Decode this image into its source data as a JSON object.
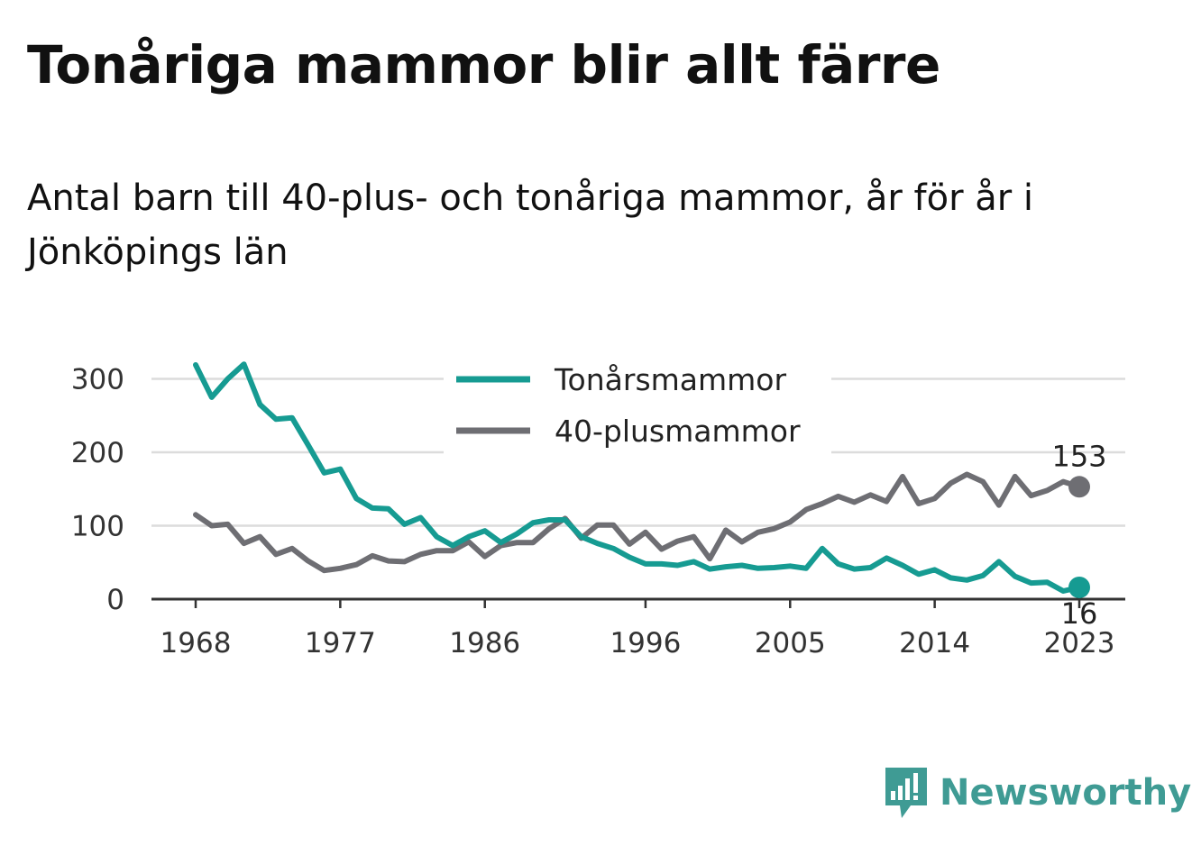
{
  "title": "Tonåriga mammor blir allt färre",
  "subtitle": "Antal barn till 40-plus- och tonåriga mammor, år för år i Jönköpings län",
  "brand": {
    "name": "Newsworthy",
    "icon": "newsworthy-logo-icon",
    "color": "#3f9b94"
  },
  "chart_data": {
    "type": "line",
    "title": "Tonåriga mammor blir allt färre",
    "subtitle": "Antal barn till 40-plus- och tonåriga mammor, år för år i Jönköpings län",
    "xlabel": "",
    "ylabel": "",
    "x": [
      1968,
      1969,
      1970,
      1971,
      1972,
      1973,
      1974,
      1975,
      1976,
      1977,
      1978,
      1979,
      1980,
      1981,
      1982,
      1983,
      1984,
      1985,
      1986,
      1987,
      1988,
      1989,
      1990,
      1991,
      1992,
      1993,
      1994,
      1995,
      1996,
      1997,
      1998,
      1999,
      2000,
      2001,
      2002,
      2003,
      2004,
      2005,
      2006,
      2007,
      2008,
      2009,
      2010,
      2011,
      2012,
      2013,
      2014,
      2015,
      2016,
      2017,
      2018,
      2019,
      2020,
      2021,
      2022,
      2023
    ],
    "x_ticks": [
      "1968",
      "1977",
      "1986",
      "1996",
      "2005",
      "2014",
      "2023"
    ],
    "y_ticks": [
      0,
      100,
      200,
      300
    ],
    "ylim": [
      0,
      340
    ],
    "grid": true,
    "legend": "top-center",
    "series": [
      {
        "name": "Tonårsmammor",
        "color": "#169b92",
        "values": [
          319,
          275,
          300,
          320,
          265,
          245,
          247,
          210,
          172,
          177,
          137,
          124,
          123,
          102,
          111,
          85,
          73,
          85,
          93,
          77,
          89,
          104,
          108,
          108,
          85,
          76,
          69,
          57,
          48,
          48,
          46,
          51,
          41,
          44,
          46,
          42,
          43,
          45,
          42,
          69,
          48,
          41,
          43,
          56,
          46,
          34,
          40,
          29,
          26,
          32,
          51,
          31,
          22,
          23,
          11,
          16
        ],
        "end_label": "16"
      },
      {
        "name": "40-plusmammor",
        "color": "#6e6e73",
        "values": [
          115,
          100,
          102,
          76,
          85,
          61,
          69,
          52,
          39,
          42,
          47,
          59,
          52,
          51,
          61,
          66,
          66,
          78,
          58,
          73,
          77,
          77,
          96,
          110,
          83,
          101,
          101,
          75,
          91,
          68,
          79,
          85,
          55,
          94,
          78,
          91,
          96,
          105,
          122,
          130,
          140,
          132,
          142,
          133,
          167,
          130,
          137,
          158,
          170,
          160,
          128,
          167,
          141,
          148,
          160,
          153
        ],
        "end_label": "153"
      }
    ]
  }
}
